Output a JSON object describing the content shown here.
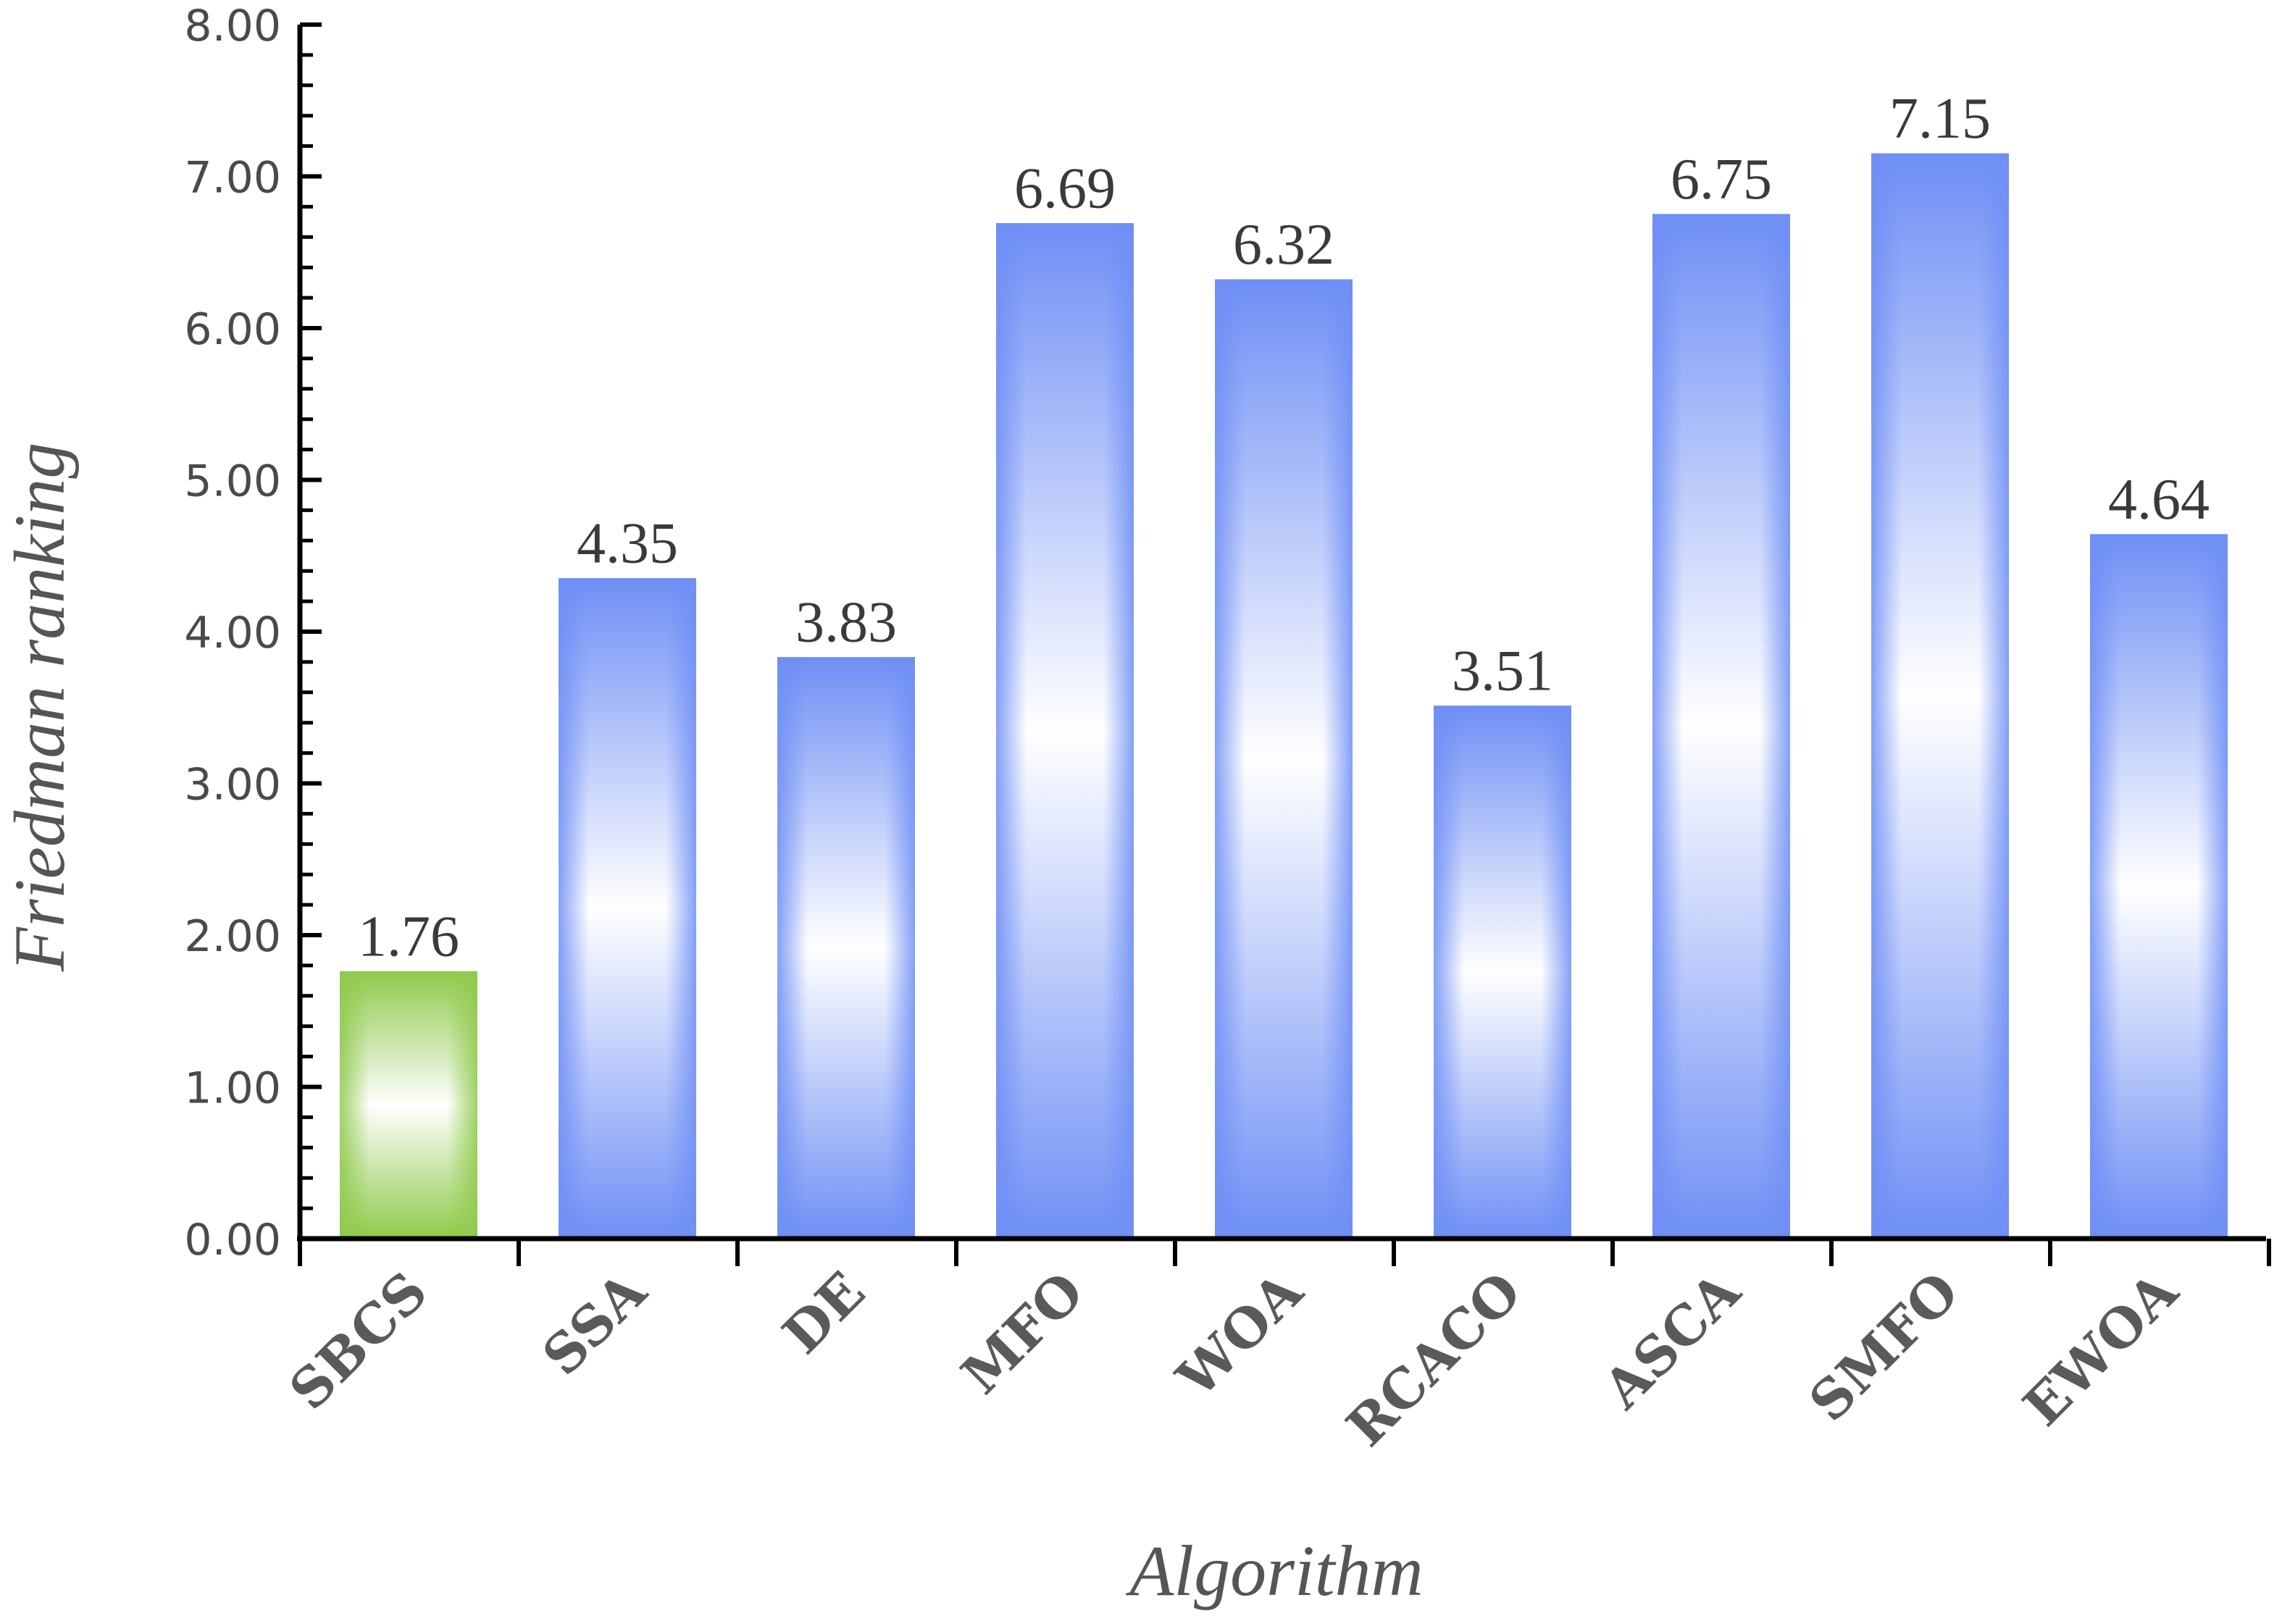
{
  "chart_data": {
    "type": "bar",
    "categories": [
      "SBCS",
      "SSA",
      "DE",
      "MFO",
      "WOA",
      "RCACO",
      "ASCA",
      "SMFO",
      "EWOA"
    ],
    "values": [
      1.76,
      4.35,
      3.83,
      6.69,
      6.32,
      3.51,
      6.75,
      7.15,
      4.64
    ],
    "value_labels": [
      "1.76",
      "4.35",
      "3.83",
      "6.69",
      "6.32",
      "3.51",
      "6.75",
      "7.15",
      "4.64"
    ],
    "xlabel": "Algorithm",
    "ylabel": "Friedman ranking",
    "ylim": [
      0,
      8
    ],
    "yticks": [
      "0.00",
      "1.00",
      "2.00",
      "3.00",
      "4.00",
      "5.00",
      "6.00",
      "7.00",
      "8.00"
    ],
    "grid": false,
    "highlight_index": 0,
    "colors": {
      "bar": "#6f8ff5",
      "highlight_bar": "#8fca4c",
      "axis": "#000000"
    }
  }
}
